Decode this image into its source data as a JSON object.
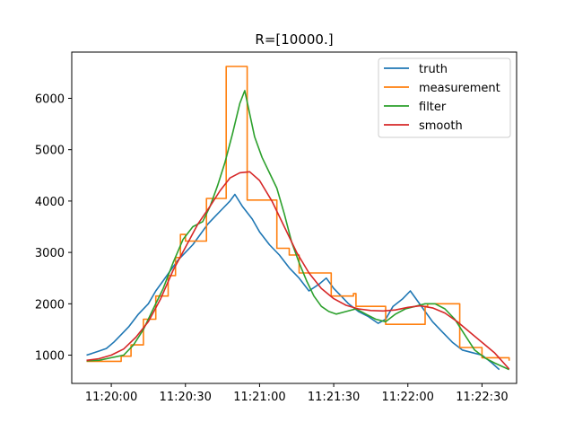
{
  "chart_data": {
    "type": "line",
    "title": "R=[10000.]",
    "xlabel": "",
    "ylabel": "",
    "x_axis": {
      "kind": "time",
      "range": [
        "11:19:44",
        "11:22:44"
      ],
      "ticks": [
        "11:20:00",
        "11:20:30",
        "11:21:00",
        "11:21:30",
        "11:22:00",
        "11:22:30"
      ]
    },
    "y_axis": {
      "range": [
        450,
        6900
      ],
      "ticks": [
        1000,
        2000,
        3000,
        4000,
        5000,
        6000
      ]
    },
    "grid": false,
    "legend_position": "top-right",
    "series": [
      {
        "name": "truth",
        "color": "#1f77b4",
        "x": [
          "11:19:50",
          "11:19:52",
          "11:19:55",
          "11:19:58",
          "11:20:01",
          "11:20:04",
          "11:20:07",
          "11:20:11",
          "11:20:15",
          "11:20:18",
          "11:20:21",
          "11:20:24",
          "11:20:27",
          "11:20:30",
          "11:20:33",
          "11:20:36",
          "11:20:39",
          "11:20:42",
          "11:20:45",
          "11:20:48",
          "11:20:50",
          "11:20:53",
          "11:20:57",
          "11:21:00",
          "11:21:04",
          "11:21:08",
          "11:21:12",
          "11:21:16",
          "11:21:20",
          "11:21:24",
          "11:21:27",
          "11:21:30",
          "11:21:33",
          "11:21:36",
          "11:21:40",
          "11:21:44",
          "11:21:48",
          "11:21:51",
          "11:21:54",
          "11:21:58",
          "11:22:01",
          "11:22:04",
          "11:22:07",
          "11:22:10",
          "11:22:14",
          "11:22:18",
          "11:22:22",
          "11:22:26",
          "11:22:30",
          "11:22:34",
          "11:22:37"
        ],
        "y": [
          1000,
          1030,
          1080,
          1130,
          1250,
          1400,
          1550,
          1800,
          2000,
          2250,
          2450,
          2650,
          2850,
          3000,
          3150,
          3350,
          3550,
          3700,
          3850,
          4000,
          4130,
          3900,
          3650,
          3400,
          3150,
          2950,
          2700,
          2500,
          2250,
          2380,
          2500,
          2300,
          2150,
          2000,
          1850,
          1750,
          1620,
          1700,
          1950,
          2100,
          2250,
          2050,
          1850,
          1650,
          1450,
          1250,
          1100,
          1050,
          1000,
          850,
          720
        ],
        "style": "solid"
      },
      {
        "name": "measurement",
        "color": "#ff7f0e",
        "x": [
          "11:19:50",
          "11:20:04",
          "11:20:08",
          "11:20:13",
          "11:20:18",
          "11:20:23",
          "11:20:26",
          "11:20:28",
          "11:20:30",
          "11:20:38",
          "11:20:38.5",
          "11:20:46",
          "11:20:46.5",
          "11:20:54",
          "11:20:55",
          "11:21:06",
          "11:21:07",
          "11:21:11",
          "11:21:12",
          "11:21:15",
          "11:21:16",
          "11:21:29",
          "11:21:30",
          "11:21:38",
          "11:21:39",
          "11:21:50",
          "11:21:51",
          "11:22:07",
          "11:22:08",
          "11:22:20",
          "11:22:21",
          "11:22:29",
          "11:22:30",
          "11:22:41"
        ],
        "y": [
          880,
          980,
          1200,
          1700,
          2150,
          2550,
          2900,
          3350,
          3220,
          3220,
          4050,
          4050,
          6620,
          6620,
          4020,
          4020,
          3080,
          3080,
          2950,
          2950,
          2600,
          2150,
          2150,
          2200,
          1950,
          1950,
          1600,
          1950,
          2000,
          2000,
          1150,
          1150,
          950,
          890
        ],
        "style": "steps"
      },
      {
        "name": "filter",
        "color": "#2ca02c",
        "x": [
          "11:19:50",
          "11:19:55",
          "11:20:00",
          "11:20:05",
          "11:20:09",
          "11:20:13",
          "11:20:17",
          "11:20:21",
          "11:20:25",
          "11:20:29",
          "11:20:33",
          "11:20:37",
          "11:20:40",
          "11:20:43",
          "11:20:46",
          "11:20:49",
          "11:20:52",
          "11:20:54",
          "11:20:56",
          "11:20:58",
          "11:21:01",
          "11:21:04",
          "11:21:07",
          "11:21:10",
          "11:21:13",
          "11:21:16",
          "11:21:19",
          "11:21:22",
          "11:21:25",
          "11:21:28",
          "11:21:31",
          "11:21:35",
          "11:21:39",
          "11:21:43",
          "11:21:47",
          "11:21:51",
          "11:21:55",
          "11:21:59",
          "11:22:03",
          "11:22:07",
          "11:22:11",
          "11:22:15",
          "11:22:19",
          "11:22:23",
          "11:22:27",
          "11:22:31",
          "11:22:35",
          "11:22:41"
        ],
        "y": [
          890,
          900,
          950,
          1000,
          1200,
          1500,
          1900,
          2300,
          2800,
          3250,
          3500,
          3600,
          3900,
          4300,
          4750,
          5300,
          5900,
          6150,
          5700,
          5250,
          4850,
          4550,
          4250,
          3750,
          3200,
          2800,
          2450,
          2150,
          1950,
          1850,
          1800,
          1850,
          1900,
          1800,
          1700,
          1650,
          1800,
          1900,
          1950,
          2000,
          2000,
          1900,
          1700,
          1400,
          1100,
          950,
          850,
          720
        ],
        "style": "solid"
      },
      {
        "name": "smooth",
        "color": "#d62728",
        "x": [
          "11:19:50",
          "11:19:55",
          "11:20:00",
          "11:20:05",
          "11:20:10",
          "11:20:15",
          "11:20:20",
          "11:20:25",
          "11:20:30",
          "11:20:35",
          "11:20:40",
          "11:20:44",
          "11:20:48",
          "11:20:52",
          "11:20:56",
          "11:21:00",
          "11:21:05",
          "11:21:10",
          "11:21:15",
          "11:21:20",
          "11:21:25",
          "11:21:30",
          "11:21:35",
          "11:21:40",
          "11:21:45",
          "11:21:50",
          "11:21:55",
          "11:22:00",
          "11:22:05",
          "11:22:10",
          "11:22:15",
          "11:22:20",
          "11:22:25",
          "11:22:30",
          "11:22:35",
          "11:22:41"
        ],
        "y": [
          900,
          930,
          1000,
          1120,
          1350,
          1650,
          2100,
          2650,
          3100,
          3550,
          3900,
          4200,
          4450,
          4550,
          4570,
          4400,
          4000,
          3500,
          3000,
          2600,
          2300,
          2100,
          1970,
          1900,
          1870,
          1860,
          1880,
          1930,
          1960,
          1920,
          1820,
          1650,
          1450,
          1250,
          1050,
          730
        ],
        "style": "solid"
      }
    ]
  }
}
